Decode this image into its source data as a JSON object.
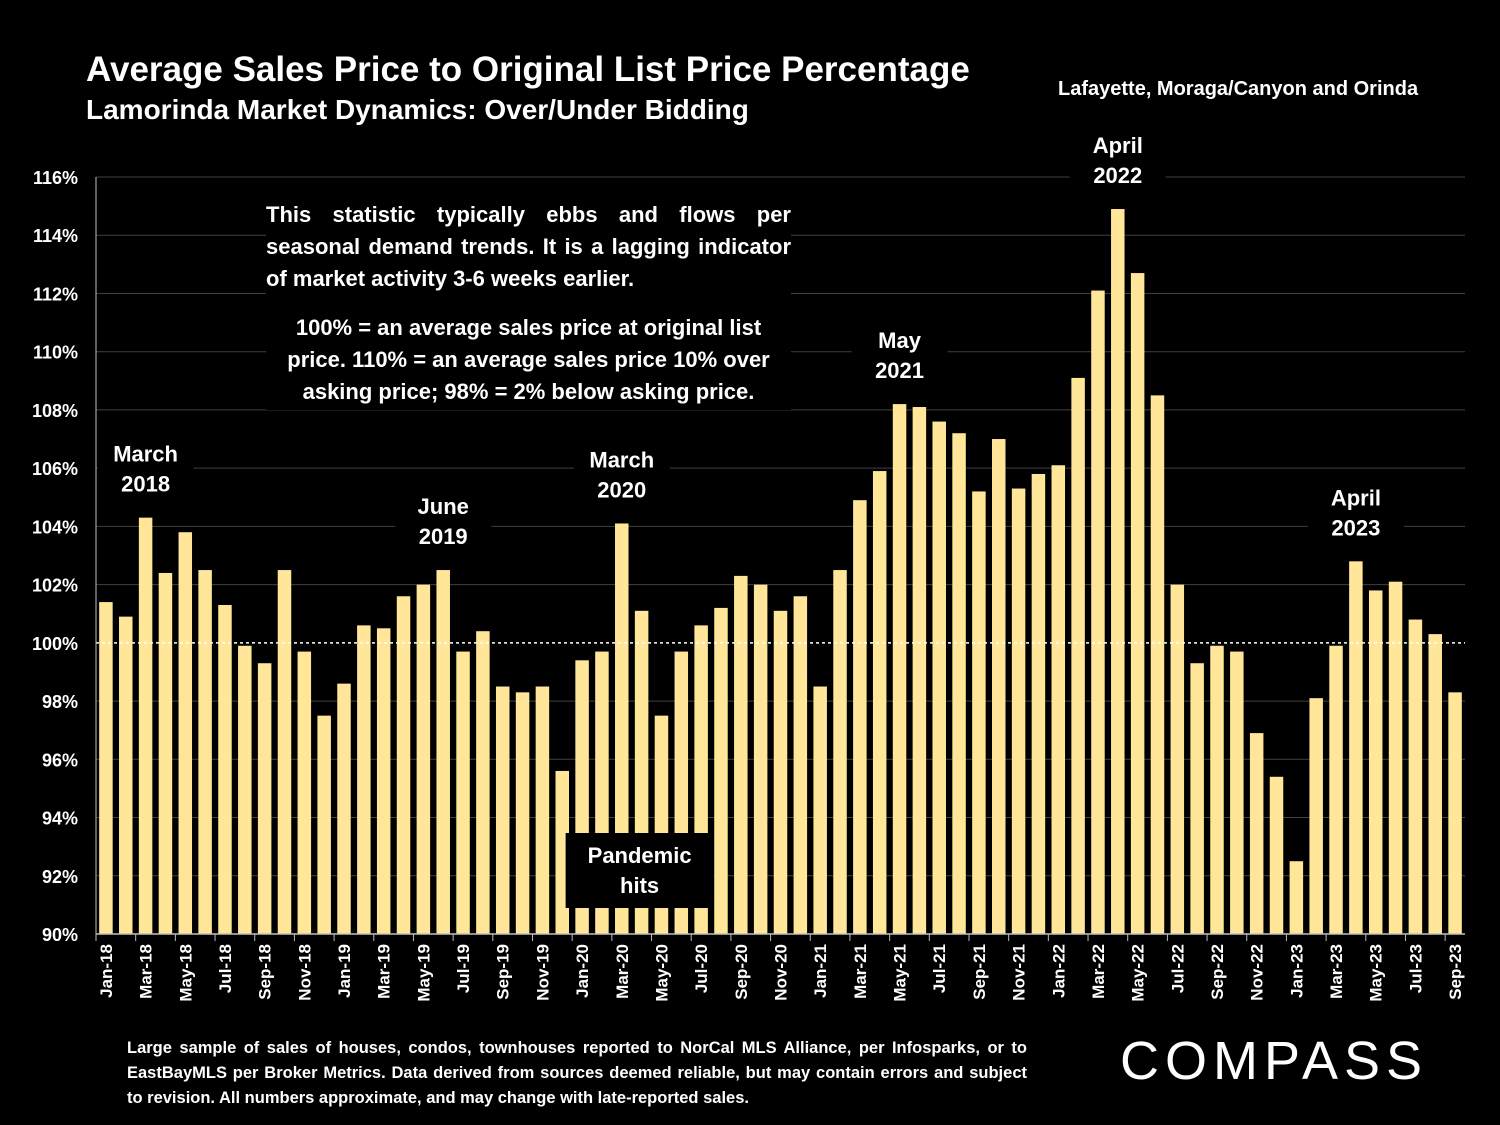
{
  "header": {
    "title": "Average Sales Price to Original List Price Percentage",
    "subtitle": "Lamorinda Market Dynamics: Over/Under Bidding",
    "region": "Lafayette, Moraga/Canyon and Orinda"
  },
  "notes": {
    "note1": "This statistic typically ebbs and flows per seasonal demand trends. It is a lagging indicator of market activity 3-6 weeks earlier.",
    "note2": "100% = an average sales price at original list price. 110% = an average sales price 10% over asking price; 98% = 2% below asking price."
  },
  "footer": {
    "text": "Large sample of sales of houses, condos, townhouses reported to NorCal MLS Alliance, per Infosparks, or to EastBayMLS per Broker Metrics. Data derived from sources deemed reliable, but may contain errors and subject to revision. All numbers approximate, and may change with late-reported sales.",
    "logo": "COMPASS"
  },
  "colors": {
    "bar": "#FFE699",
    "background": "#000000",
    "grid": "#404040",
    "text": "#FFFFFF"
  },
  "chart_data": {
    "type": "bar",
    "ylim": [
      90,
      116
    ],
    "ytick_labels": [
      "90%",
      "92%",
      "94%",
      "96%",
      "98%",
      "100%",
      "102%",
      "104%",
      "106%",
      "108%",
      "110%",
      "112%",
      "114%",
      "116%"
    ],
    "reference_line": 100,
    "categories": [
      "Jan-18",
      "Feb-18",
      "Mar-18",
      "Apr-18",
      "May-18",
      "Jun-18",
      "Jul-18",
      "Aug-18",
      "Sep-18",
      "Oct-18",
      "Nov-18",
      "Dec-18",
      "Jan-19",
      "Feb-19",
      "Mar-19",
      "Apr-19",
      "May-19",
      "Jun-19",
      "Jul-19",
      "Aug-19",
      "Sep-19",
      "Oct-19",
      "Nov-19",
      "Dec-19",
      "Jan-20",
      "Feb-20",
      "Mar-20",
      "Apr-20",
      "May-20",
      "Jun-20",
      "Jul-20",
      "Aug-20",
      "Sep-20",
      "Oct-20",
      "Nov-20",
      "Dec-20",
      "Jan-21",
      "Feb-21",
      "Mar-21",
      "Apr-21",
      "May-21",
      "Jun-21",
      "Jul-21",
      "Aug-21",
      "Sep-21",
      "Oct-21",
      "Nov-21",
      "Dec-21",
      "Jan-22",
      "Feb-22",
      "Mar-22",
      "Apr-22",
      "May-22",
      "Jun-22",
      "Jul-22",
      "Aug-22",
      "Sep-22",
      "Oct-22",
      "Nov-22",
      "Dec-22",
      "Jan-23",
      "Feb-23",
      "Mar-23",
      "Apr-23",
      "May-23",
      "Jun-23",
      "Jul-23",
      "Aug-23",
      "Sep-23"
    ],
    "values": [
      101.4,
      100.9,
      104.3,
      102.4,
      103.8,
      102.5,
      101.3,
      99.9,
      99.3,
      102.5,
      99.7,
      97.5,
      98.6,
      100.6,
      100.5,
      101.6,
      102.0,
      102.5,
      99.7,
      100.4,
      98.5,
      98.3,
      98.5,
      95.6,
      99.4,
      99.7,
      104.1,
      101.1,
      97.5,
      99.7,
      100.6,
      101.2,
      102.3,
      102.0,
      101.1,
      101.6,
      98.5,
      102.5,
      104.9,
      105.9,
      108.2,
      108.1,
      107.6,
      107.2,
      105.2,
      107.0,
      105.3,
      105.8,
      106.1,
      109.1,
      112.1,
      114.9,
      112.7,
      108.5,
      102.0,
      99.3,
      99.9,
      99.7,
      96.9,
      95.4,
      92.5,
      98.1,
      99.9,
      102.8,
      101.8,
      102.1,
      100.8,
      100.3,
      98.3
    ],
    "annotations": [
      {
        "index": 2,
        "line1": "March",
        "line2": "2018"
      },
      {
        "index": 17,
        "line1": "June",
        "line2": "2019"
      },
      {
        "index": 26,
        "line1": "March",
        "line2": "2020"
      },
      {
        "index": 40,
        "line1": "May",
        "line2": "2021"
      },
      {
        "index": 51,
        "line1": "April",
        "line2": "2022"
      },
      {
        "index": 63,
        "line1": "April",
        "line2": "2023"
      }
    ],
    "callout": {
      "index": 27,
      "line1": "Pandemic",
      "line2": "hits"
    }
  }
}
